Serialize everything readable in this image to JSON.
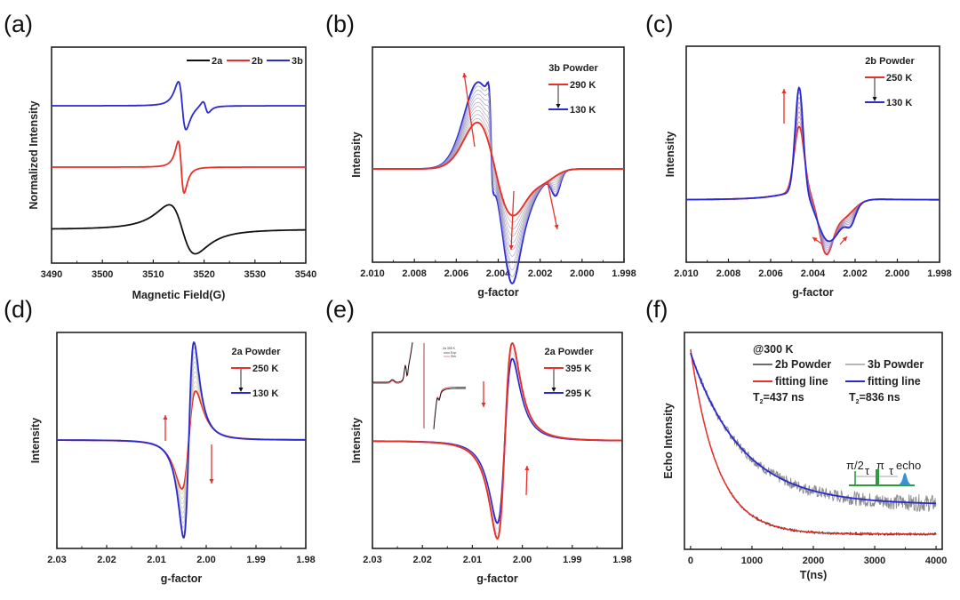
{
  "figure": {
    "panels": [
      "(a)",
      "(b)",
      "(c)",
      "(d)",
      "(e)",
      "(f)"
    ]
  },
  "chart_data": [
    {
      "id": "a",
      "panel_label": "(a)",
      "type": "line",
      "title": "",
      "xlabel": "Magnetic Field(G)",
      "ylabel": "Normalized Intensity",
      "xlim": [
        3490,
        3540
      ],
      "xticks": [
        "3490",
        "3500",
        "3510",
        "3520",
        "3530",
        "3540"
      ],
      "legend": {
        "position": "top-right",
        "entries": [
          {
            "name": "2a",
            "color": "#111111"
          },
          {
            "name": "2b",
            "color": "#e8302a"
          },
          {
            "name": "3b",
            "color": "#2a2ad0"
          }
        ]
      },
      "series": [
        {
          "name": "2a",
          "color": "#111111",
          "offset": -1.0,
          "model": "derivative",
          "center": 3515.8,
          "width": 3.6,
          "amp": 0.72
        },
        {
          "name": "2b",
          "color": "#e8302a",
          "offset": 0.0,
          "model": "derivative",
          "center": 3515.5,
          "width": 1.1,
          "amp": 0.72
        },
        {
          "name": "3b",
          "color": "#2a2ad0",
          "offset": 1.0,
          "model": "derivative2",
          "center": 3515.7,
          "width": 1.6,
          "amp": 0.62
        }
      ]
    },
    {
      "id": "b",
      "panel_label": "(b)",
      "type": "line",
      "xlabel": "g-factor",
      "ylabel": "Intensity",
      "xlim": [
        2.01,
        1.998
      ],
      "xticks": [
        "2.010",
        "2.008",
        "2.006",
        "2.004",
        "2.002",
        "2.000",
        "1.998"
      ],
      "legend": {
        "position": "top-right",
        "title": "3b Powder",
        "entries": [
          {
            "name": "290 K",
            "color": "#e8302a"
          },
          {
            "name": "130 K",
            "color": "#2a2ad0"
          }
        ],
        "arrow": "290 K to 130 K"
      },
      "temperatures_K": [
        290,
        130
      ],
      "n_traces": 10
    },
    {
      "id": "c",
      "panel_label": "(c)",
      "type": "line",
      "xlabel": "g-factor",
      "ylabel": "Intensity",
      "xlim": [
        2.01,
        1.998
      ],
      "xticks": [
        "2.010",
        "2.008",
        "2.006",
        "2.004",
        "2.002",
        "2.000",
        "1.998"
      ],
      "legend": {
        "position": "top-right",
        "title": "2b Powder",
        "entries": [
          {
            "name": "250 K",
            "color": "#e8302a"
          },
          {
            "name": "130 K",
            "color": "#2a2ad0"
          }
        ],
        "arrow": "250 K to 130 K"
      },
      "temperatures_K": [
        250,
        130
      ],
      "n_traces": 8
    },
    {
      "id": "d",
      "panel_label": "(d)",
      "type": "line",
      "xlabel": "g-factor",
      "ylabel": "Intensity",
      "xlim": [
        2.03,
        1.98
      ],
      "xticks": [
        "2.03",
        "2.02",
        "2.01",
        "2.00",
        "1.99",
        "1.98"
      ],
      "legend": {
        "position": "top-right",
        "title": "2a Powder",
        "entries": [
          {
            "name": "250 K",
            "color": "#e8302a"
          },
          {
            "name": "130 K",
            "color": "#2a2ad0"
          }
        ],
        "arrow": "250 K to 130 K"
      },
      "temperatures_K": [
        250,
        130
      ],
      "n_traces": 10
    },
    {
      "id": "e",
      "panel_label": "(e)",
      "type": "line",
      "xlabel": "g-factor",
      "ylabel": "Intensity",
      "xlim": [
        2.03,
        1.98
      ],
      "xticks": [
        "2.03",
        "2.02",
        "2.01",
        "2.00",
        "1.99",
        "1.98"
      ],
      "legend": {
        "position": "top-right",
        "title": "2a Powder",
        "entries": [
          {
            "name": "395 K",
            "color": "#e8302a"
          },
          {
            "name": "295 K",
            "color": "#2a2ad0"
          }
        ],
        "arrow": "395 K to 295 K"
      },
      "temperatures_K": [
        395,
        295
      ],
      "inset": {
        "title": "2a 395 K",
        "entries": [
          {
            "name": "Exp.",
            "color": "#111111"
          },
          {
            "name": "Sim.",
            "color": "#d04050"
          }
        ]
      }
    },
    {
      "id": "f",
      "panel_label": "(f)",
      "type": "line",
      "xlabel": "T(ns)",
      "ylabel": "Echo Intensity",
      "xlim": [
        -100,
        4100
      ],
      "xticks": [
        "0",
        "1000",
        "2000",
        "3000",
        "4000"
      ],
      "annotation": "@300 K",
      "legend": {
        "position": "top",
        "entries": [
          {
            "name": "2b Powder",
            "color": "#111111"
          },
          {
            "name": "3b Powder",
            "color": "#8a8a8a"
          },
          {
            "name": "fitting line",
            "color": "#e8302a"
          },
          {
            "name": "fitting line",
            "color": "#2a2ad0"
          }
        ]
      },
      "t2_labels": [
        {
          "prefix": "T",
          "sub": "2",
          "text": "=437 ns"
        },
        {
          "prefix": "T",
          "sub": "2",
          "text": "=836 ns"
        }
      ],
      "series": [
        {
          "name": "2b Powder",
          "color": "#111111",
          "T2_ns": 437,
          "A": 1.0,
          "base": 0.0
        },
        {
          "name": "3b Powder",
          "color": "#8a8a8a",
          "T2_ns": 836,
          "A": 0.82,
          "base": 0.16
        },
        {
          "name": "fitting line (2b)",
          "color": "#e8302a",
          "T2_ns": 437,
          "A": 1.0,
          "base": 0.0
        },
        {
          "name": "fitting line (3b)",
          "color": "#2a2ad0",
          "T2_ns": 836,
          "A": 0.82,
          "base": 0.16
        }
      ],
      "pulse_sequence": {
        "labels": [
          "π/2",
          "τ",
          "π",
          "τ",
          "echo"
        ],
        "color": "#2e9a3e",
        "echo_color": "#3a8fd8"
      }
    }
  ]
}
